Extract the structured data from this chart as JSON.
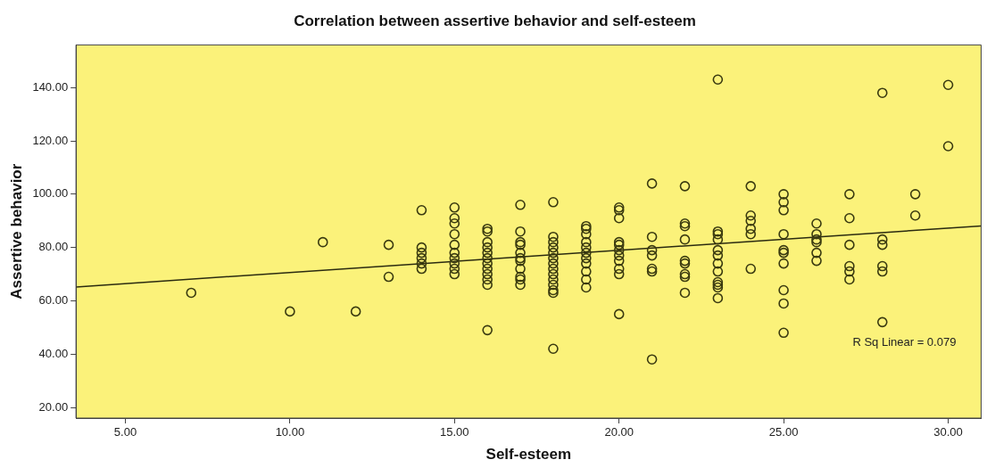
{
  "chart_data": {
    "type": "scatter",
    "title": "Correlation between assertive behavior and self-esteem",
    "xlabel": "Self-esteem",
    "ylabel": "Assertive behavior",
    "xlim": [
      3.5,
      31
    ],
    "xticks": [
      {
        "value": 5,
        "label": "5.00"
      },
      {
        "value": 10,
        "label": "10.00"
      },
      {
        "value": 15,
        "label": "15.00"
      },
      {
        "value": 20,
        "label": "20.00"
      },
      {
        "value": 25,
        "label": "25.00"
      },
      {
        "value": 30,
        "label": "30.00"
      }
    ],
    "ylim": [
      16,
      156
    ],
    "yticks": [
      {
        "value": 20,
        "label": "20.00"
      },
      {
        "value": 40,
        "label": "40.00"
      },
      {
        "value": 60,
        "label": "60.00"
      },
      {
        "value": 80,
        "label": "80.00"
      },
      {
        "value": 100,
        "label": "100.00"
      },
      {
        "value": 120,
        "label": "120.00"
      },
      {
        "value": 140,
        "label": "140.00"
      }
    ],
    "grid": false,
    "legend": false,
    "marker": "circle",
    "annotations": [
      "R Sq Linear = 0.079"
    ],
    "series": [
      {
        "type": "scatter",
        "color": "#3a3a10",
        "x": [
          7,
          10,
          11,
          12,
          13,
          13,
          14,
          14,
          14,
          14,
          14,
          14,
          15,
          15,
          15,
          15,
          15,
          15,
          15,
          15,
          15,
          15,
          16,
          16,
          16,
          16,
          16,
          16,
          16,
          16,
          16,
          16,
          16,
          16,
          17,
          17,
          17,
          17,
          17,
          17,
          17,
          17,
          17,
          17,
          17,
          18,
          18,
          18,
          18,
          18,
          18,
          18,
          18,
          18,
          18,
          18,
          18,
          18,
          18,
          19,
          19,
          19,
          19,
          19,
          19,
          19,
          19,
          19,
          19,
          19,
          20,
          20,
          20,
          20,
          20,
          20,
          20,
          20,
          20,
          20,
          20,
          21,
          21,
          21,
          21,
          21,
          21,
          21,
          22,
          22,
          22,
          22,
          22,
          22,
          22,
          22,
          22,
          23,
          23,
          23,
          23,
          23,
          23,
          23,
          23,
          23,
          23,
          23,
          23,
          24,
          24,
          24,
          24,
          24,
          24,
          25,
          25,
          25,
          25,
          25,
          25,
          25,
          25,
          25,
          25,
          26,
          26,
          26,
          26,
          26,
          26,
          27,
          27,
          27,
          27,
          27,
          27,
          28,
          28,
          28,
          28,
          28,
          28,
          29,
          29,
          30,
          30
        ],
        "values": [
          63,
          56,
          82,
          56,
          81,
          69,
          94,
          80,
          78,
          76,
          74,
          72,
          95,
          91,
          89,
          85,
          81,
          78,
          76,
          74,
          72,
          70,
          87,
          86,
          82,
          80,
          78,
          76,
          74,
          72,
          70,
          68,
          66,
          49,
          96,
          86,
          82,
          81,
          78,
          76,
          75,
          72,
          69,
          68,
          66,
          97,
          84,
          82,
          80,
          78,
          76,
          74,
          72,
          70,
          68,
          66,
          64,
          63,
          42,
          88,
          87,
          85,
          82,
          80,
          78,
          76,
          74,
          71,
          68,
          65,
          95,
          94,
          91,
          82,
          81,
          79,
          77,
          75,
          72,
          70,
          55,
          104,
          84,
          79,
          77,
          72,
          71,
          38,
          103,
          89,
          88,
          83,
          75,
          74,
          70,
          69,
          63,
          143,
          86,
          85,
          83,
          79,
          77,
          74,
          71,
          67,
          66,
          65,
          61,
          103,
          92,
          90,
          87,
          85,
          72,
          100,
          97,
          94,
          85,
          79,
          78,
          74,
          64,
          59,
          48,
          89,
          85,
          83,
          82,
          78,
          75,
          100,
          91,
          81,
          73,
          71,
          68,
          138,
          83,
          81,
          73,
          71,
          52,
          100,
          92,
          141,
          118
        ]
      },
      {
        "type": "line",
        "color": "#2a2a10",
        "x": [
          3.5,
          31
        ],
        "values": [
          65.2,
          88.1
        ],
        "line_style": "solid",
        "marker": "none"
      }
    ]
  }
}
